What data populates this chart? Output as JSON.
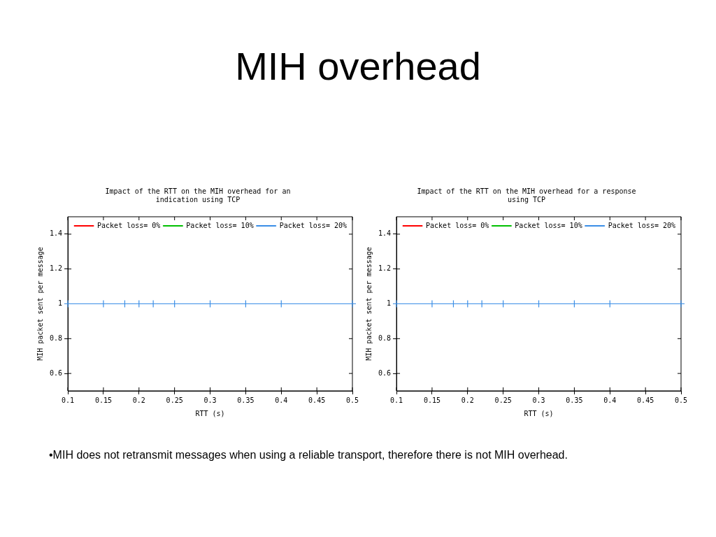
{
  "chart_data": [
    {
      "type": "other",
      "title": "MIH overhead",
      "annotations": [
        "•MIH does not retransmit messages when using a reliable transport, therefore there is not MIH overhead."
      ]
    },
    {
      "type": "line",
      "title": "Impact of the RTT on the MIH overhead for an indication using TCP",
      "xlabel": "RTT (s)",
      "ylabel": "MIH packet sent per message",
      "x": [
        0.1,
        0.15,
        0.18,
        0.2,
        0.22,
        0.25,
        0.3,
        0.35,
        0.4,
        0.5
      ],
      "series": [
        {
          "name": "Packet loss= 0%",
          "color": "#ff0000",
          "marker": "cross",
          "values": [
            null,
            null,
            null,
            null,
            null,
            null,
            null,
            null,
            null,
            null
          ]
        },
        {
          "name": "Packet loss= 10%",
          "color": "#00c000",
          "marker": "cross",
          "values": [
            null,
            null,
            null,
            null,
            null,
            null,
            null,
            null,
            null,
            null
          ]
        },
        {
          "name": "Packet loss= 20%",
          "color": "#3a8ee6",
          "marker": "cross",
          "values": [
            1,
            1,
            1,
            1,
            1,
            1,
            1,
            1,
            1,
            1
          ]
        }
      ],
      "xlim": [
        0.1,
        0.5
      ],
      "xticks": [
        0.1,
        0.15,
        0.2,
        0.25,
        0.3,
        0.35,
        0.4,
        0.45,
        0.5
      ],
      "ylim": [
        0.5,
        1.5
      ],
      "yticks": [
        0.6,
        0.8,
        1,
        1.2,
        1.4
      ],
      "grid": false,
      "legend": "top right"
    },
    {
      "type": "line",
      "title": "Impact of the RTT on the MIH overhead for a response using TCP",
      "xlabel": "RTT (s)",
      "ylabel": "MIH packet sent per message",
      "x": [
        0.1,
        0.15,
        0.18,
        0.2,
        0.22,
        0.25,
        0.3,
        0.35,
        0.4,
        0.5
      ],
      "series": [
        {
          "name": "Packet loss= 0%",
          "color": "#ff0000",
          "marker": "cross",
          "values": [
            null,
            null,
            null,
            null,
            null,
            null,
            null,
            null,
            null,
            null
          ]
        },
        {
          "name": "Packet loss= 10%",
          "color": "#00c000",
          "marker": "cross",
          "values": [
            null,
            null,
            null,
            null,
            null,
            null,
            null,
            null,
            null,
            null
          ]
        },
        {
          "name": "Packet loss= 20%",
          "color": "#3a8ee6",
          "marker": "cross",
          "values": [
            1,
            1,
            1,
            1,
            1,
            1,
            1,
            1,
            1,
            1
          ]
        }
      ],
      "xlim": [
        0.1,
        0.5
      ],
      "xticks": [
        0.1,
        0.15,
        0.2,
        0.25,
        0.3,
        0.35,
        0.4,
        0.45,
        0.5
      ],
      "ylim": [
        0.5,
        1.5
      ],
      "yticks": [
        0.6,
        0.8,
        1,
        1.2,
        1.4
      ],
      "grid": false,
      "legend": "top right"
    }
  ]
}
